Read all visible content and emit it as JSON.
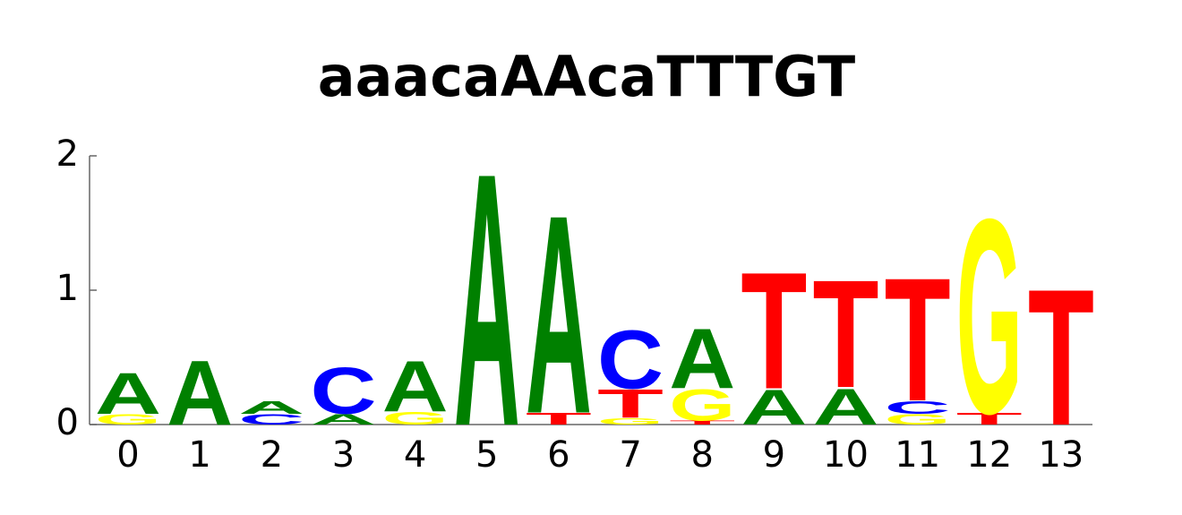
{
  "chart_data": {
    "type": "logo",
    "title": "aaacaAAcaTTTGT",
    "categories": [
      "0",
      "1",
      "2",
      "3",
      "4",
      "5",
      "6",
      "7",
      "8",
      "9",
      "10",
      "11",
      "12",
      "13"
    ],
    "series": [
      {
        "name": "A",
        "color": "#008000",
        "values": [
          0.32,
          0.5,
          0.1,
          0.08,
          0.39,
          1.95,
          1.53,
          0,
          0.46,
          0.27,
          0.28,
          0,
          0,
          0
        ]
      },
      {
        "name": "C",
        "color": "#0000ff",
        "values": [
          0,
          0,
          0.08,
          0.36,
          0,
          0,
          0,
          0.45,
          0,
          0,
          0,
          0.1,
          0,
          0
        ]
      },
      {
        "name": "G",
        "color": "#ffff00",
        "values": [
          0.08,
          0,
          0,
          0,
          0.1,
          0,
          0,
          0.05,
          0.24,
          0,
          0,
          0.08,
          1.5,
          0
        ]
      },
      {
        "name": "T",
        "color": "#ff0000",
        "values": [
          0,
          0,
          0,
          0,
          0,
          0,
          0.09,
          0.22,
          0.03,
          0.9,
          0.83,
          0.95,
          0.09,
          1.05
        ]
      }
    ],
    "ylim": [
      0,
      2
    ],
    "yticks": [
      0,
      1,
      2
    ]
  }
}
